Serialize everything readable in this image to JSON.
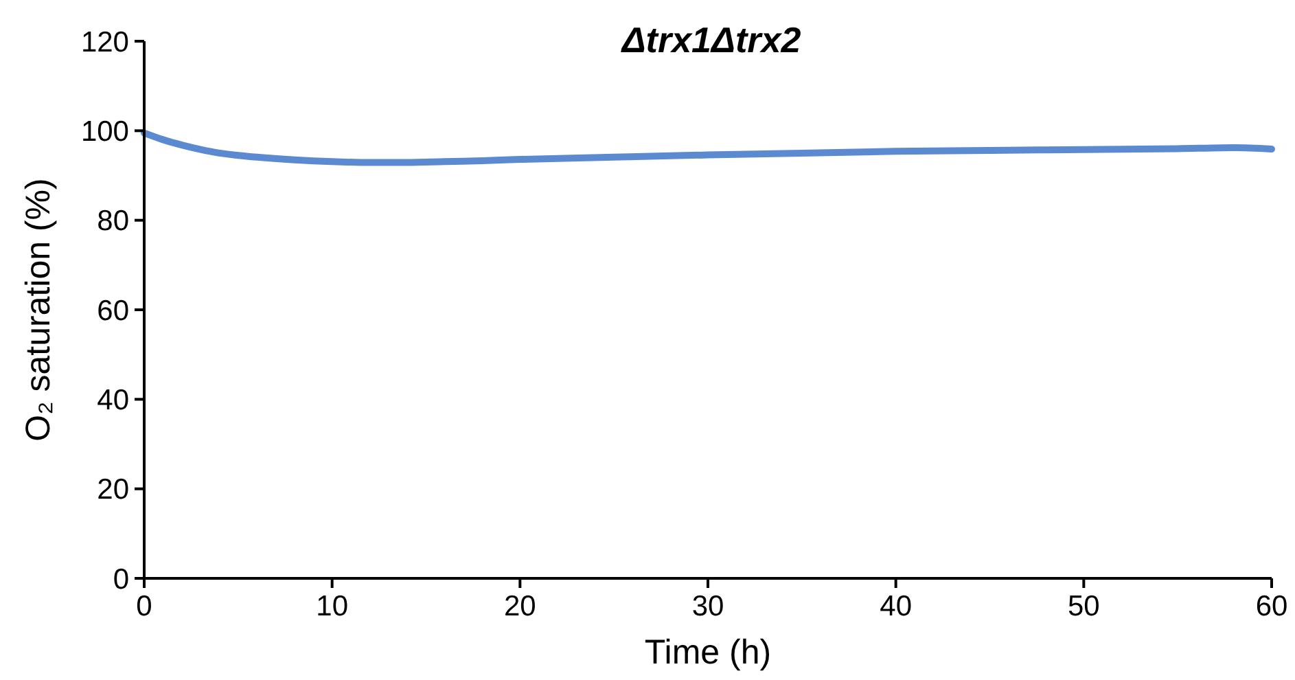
{
  "chart_data": {
    "type": "line",
    "title": "Δtrx1Δtrx2",
    "xlabel": "Time (h)",
    "ylabel": "O₂ saturation (%)",
    "x": [
      0,
      1,
      2,
      3,
      4,
      5,
      6,
      8,
      10,
      12,
      14,
      16,
      18,
      20,
      25,
      30,
      35,
      40,
      45,
      50,
      55,
      58,
      60
    ],
    "series": [
      {
        "color": "#5b8ad0",
        "values": [
          99.5,
          98,
          96.8,
          95.8,
          95,
          94.5,
          94.1,
          93.5,
          93.1,
          92.9,
          92.9,
          93.1,
          93.3,
          93.6,
          94.1,
          94.6,
          95,
          95.4,
          95.6,
          95.8,
          96,
          96.2,
          95.9
        ]
      }
    ],
    "xlim": [
      0,
      60
    ],
    "xticks": [
      0,
      10,
      20,
      30,
      40,
      50,
      60
    ],
    "ylim": [
      0,
      120
    ],
    "yticks": [
      0,
      20,
      40,
      60,
      80,
      100,
      120
    ],
    "grid": false,
    "marker": "none",
    "line_style": "solid"
  }
}
